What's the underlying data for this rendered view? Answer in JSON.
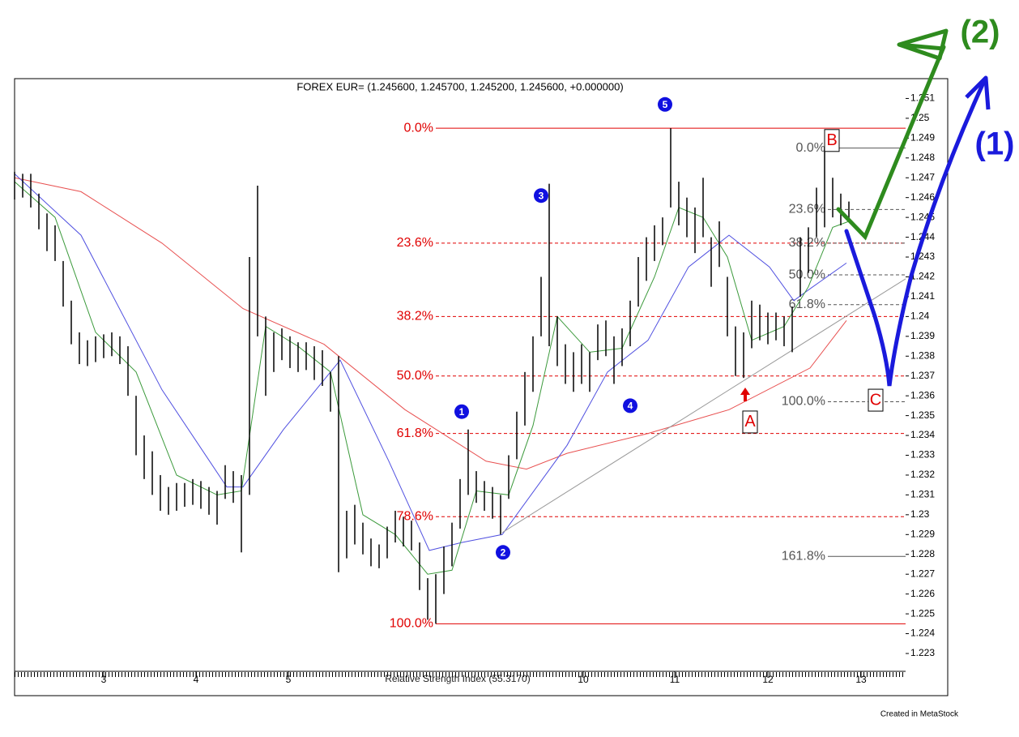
{
  "chart_data": {
    "type": "ohlc",
    "title": "FOREX EUR= (1.245600, 1.245700, 1.245200, 1.245600, +0.000000)",
    "indicator_label": "Relative Strength Index (55.3170)",
    "footer": "Created in MetaStock",
    "xlim": [
      0,
      110
    ],
    "ylim": [
      1.2221,
      1.252
    ],
    "xticks": [
      {
        "value": 11,
        "label": "3"
      },
      {
        "value": 22.4,
        "label": "4"
      },
      {
        "value": 33.8,
        "label": "5"
      },
      {
        "value": 70.2,
        "label": "10"
      },
      {
        "value": 81.5,
        "label": "11"
      },
      {
        "value": 93,
        "label": "12"
      },
      {
        "value": 104.5,
        "label": "13"
      }
    ],
    "yticks": [
      1.223,
      1.224,
      1.225,
      1.226,
      1.227,
      1.228,
      1.229,
      1.23,
      1.231,
      1.232,
      1.233,
      1.234,
      1.235,
      1.236,
      1.237,
      1.238,
      1.239,
      1.24,
      1.241,
      1.242,
      1.243,
      1.244,
      1.245,
      1.246,
      1.247,
      1.248,
      1.249,
      1.25,
      1.251
    ],
    "price": {
      "color": "#000000",
      "x": [
        0,
        1,
        2,
        3,
        4,
        5,
        6,
        7,
        8,
        9,
        10,
        11,
        12,
        13,
        14,
        15,
        16,
        17,
        18,
        19,
        20,
        21,
        22,
        23,
        24,
        25,
        26,
        27,
        28,
        29,
        30,
        31,
        32,
        33,
        34,
        35,
        36,
        37,
        38,
        39,
        40,
        41,
        42,
        43,
        44,
        45,
        46,
        47,
        48,
        49,
        50,
        51,
        52,
        53,
        54,
        55,
        56,
        57,
        58,
        59,
        60,
        61,
        62,
        63,
        64,
        65,
        66,
        67,
        68,
        69,
        70,
        71,
        72,
        73,
        74,
        75,
        76,
        77,
        78,
        79,
        80,
        81,
        82,
        83,
        84,
        85,
        86,
        87,
        88,
        89,
        90,
        91,
        92,
        93,
        94,
        95,
        96,
        97,
        98,
        99,
        100,
        101,
        102,
        103
      ],
      "high": [
        1.2473,
        1.2472,
        1.2472,
        1.2462,
        1.2452,
        1.2446,
        1.2428,
        1.2408,
        1.2392,
        1.2388,
        1.239,
        1.2391,
        1.2392,
        1.239,
        1.2385,
        1.236,
        1.234,
        1.2332,
        1.232,
        1.2314,
        1.2316,
        1.2316,
        1.2318,
        1.2317,
        1.2314,
        1.2312,
        1.2325,
        1.2322,
        1.232,
        1.243,
        1.2466,
        1.24,
        1.2392,
        1.2394,
        1.239,
        1.2387,
        1.2387,
        1.2385,
        1.2383,
        1.2372,
        1.238,
        1.2302,
        1.2305,
        1.2296,
        1.2288,
        1.2285,
        1.2294,
        1.2302,
        1.2299,
        1.2297,
        1.2286,
        1.2268,
        1.227,
        1.2284,
        1.2296,
        1.2318,
        1.2343,
        1.2322,
        1.2317,
        1.2314,
        1.231,
        1.233,
        1.2352,
        1.2372,
        1.239,
        1.242,
        1.2467,
        1.24,
        1.2386,
        1.2382,
        1.2386,
        1.2382,
        1.2396,
        1.2398,
        1.239,
        1.2394,
        1.2408,
        1.243,
        1.244,
        1.2446,
        1.245,
        1.2495,
        1.2468,
        1.246,
        1.2455,
        1.247,
        1.244,
        1.2448,
        1.242,
        1.2395,
        1.2392,
        1.2408,
        1.2406,
        1.2402,
        1.2402,
        1.24,
        1.2405,
        1.244,
        1.2445,
        1.2465,
        1.2485,
        1.247,
        1.2462,
        1.2458
      ],
      "low": [
        1.2459,
        1.246,
        1.2455,
        1.2444,
        1.2433,
        1.2428,
        1.2405,
        1.2386,
        1.2376,
        1.2375,
        1.2377,
        1.2379,
        1.238,
        1.2376,
        1.236,
        1.233,
        1.2318,
        1.231,
        1.2302,
        1.23,
        1.2302,
        1.2304,
        1.2305,
        1.2303,
        1.23,
        1.2295,
        1.2308,
        1.2306,
        1.2281,
        1.231,
        1.239,
        1.236,
        1.2372,
        1.2378,
        1.2374,
        1.2372,
        1.2373,
        1.2368,
        1.2365,
        1.2352,
        1.2271,
        1.2278,
        1.2285,
        1.228,
        1.2274,
        1.2273,
        1.2278,
        1.2286,
        1.2284,
        1.2282,
        1.2262,
        1.2247,
        1.2245,
        1.226,
        1.2274,
        1.2293,
        1.231,
        1.2306,
        1.2302,
        1.2298,
        1.229,
        1.2308,
        1.2328,
        1.2345,
        1.2362,
        1.239,
        1.2385,
        1.2375,
        1.2366,
        1.2362,
        1.2366,
        1.2362,
        1.2378,
        1.238,
        1.2366,
        1.2375,
        1.2385,
        1.2405,
        1.2418,
        1.2428,
        1.2436,
        1.2455,
        1.2446,
        1.244,
        1.2432,
        1.244,
        1.2415,
        1.2425,
        1.239,
        1.237,
        1.2369,
        1.2384,
        1.2388,
        1.2386,
        1.2388,
        1.2385,
        1.2382,
        1.241,
        1.2422,
        1.244,
        1.2445,
        1.245,
        1.2446,
        1.2448
      ]
    },
    "series": [
      {
        "color": "#e85050",
        "x": [
          0,
          8.2,
          18.2,
          28.2,
          38.2,
          48.2,
          58.2,
          63.2,
          68.2,
          78.2,
          88.2,
          98.2,
          102.7
        ],
        "values": [
          1.247,
          1.2463,
          1.2437,
          1.2404,
          1.2386,
          1.2353,
          1.2327,
          1.2323,
          1.2331,
          1.2341,
          1.2353,
          1.2374,
          1.2398
        ]
      },
      {
        "color": "#5050e0",
        "x": [
          0,
          8.2,
          18.2,
          26.2,
          28.2,
          33.2,
          40.2,
          46.2,
          51.2,
          55.2,
          60.2,
          68.2,
          73.2,
          78.2,
          83.2,
          88.2,
          93.2,
          96.2,
          98.2,
          102.7
        ],
        "values": [
          1.2472,
          1.2441,
          1.2363,
          1.2314,
          1.2314,
          1.2343,
          1.2378,
          1.2327,
          1.2282,
          1.2286,
          1.229,
          1.2335,
          1.2372,
          1.2388,
          1.2425,
          1.2441,
          1.2425,
          1.2408,
          1.2414,
          1.2427
        ]
      },
      {
        "color": "#3c9a3c",
        "x": [
          0,
          5,
          10,
          15,
          20,
          25,
          28,
          31,
          35,
          39,
          43,
          47,
          51,
          54,
          57,
          61,
          64,
          67,
          71,
          75,
          79,
          82,
          85,
          88,
          91,
          95,
          98,
          101,
          103
        ],
        "values": [
          1.2468,
          1.245,
          1.2392,
          1.2372,
          1.232,
          1.231,
          1.2312,
          1.2395,
          1.2385,
          1.2372,
          1.23,
          1.229,
          1.227,
          1.2272,
          1.2312,
          1.231,
          1.2345,
          1.24,
          1.2382,
          1.2384,
          1.242,
          1.2455,
          1.245,
          1.243,
          1.2388,
          1.2395,
          1.2415,
          1.2445,
          1.2448
        ]
      },
      {
        "color": "#999999",
        "x": [
          60.2,
          110
        ],
        "values": [
          1.2291,
          1.2419
        ]
      }
    ],
    "fib_retracement": {
      "color": "#e00000",
      "x_start": 52,
      "levels": [
        {
          "label": "0.0%",
          "value": 1.2495
        },
        {
          "label": "23.6%",
          "value": 1.2437
        },
        {
          "label": "38.2%",
          "value": 1.24
        },
        {
          "label": "50.0%",
          "value": 1.237
        },
        {
          "label": "61.8%",
          "value": 1.2341
        },
        {
          "label": "78.6%",
          "value": 1.2299
        },
        {
          "label": "100.0%",
          "value": 1.2245
        }
      ]
    },
    "fib_projection": {
      "color": "#555555",
      "x_start": 100.4,
      "levels": [
        {
          "label": "0.0%",
          "value": 1.2485
        },
        {
          "label": "23.6%",
          "value": 1.2454
        },
        {
          "label": "38.2%",
          "value": 1.2437
        },
        {
          "label": "50.0%",
          "value": 1.2421
        },
        {
          "label": "61.8%",
          "value": 1.2406
        },
        {
          "label": "100.0%",
          "value": 1.2357
        },
        {
          "label": "161.8%",
          "value": 1.2279
        }
      ]
    },
    "wave_labels": {
      "color": "#1010e0",
      "points": [
        {
          "label": "1",
          "x": 55.2,
          "value": 1.2352
        },
        {
          "label": "2",
          "x": 60.3,
          "value": 1.2281
        },
        {
          "label": "3",
          "x": 65,
          "value": 1.2461
        },
        {
          "label": "4",
          "x": 76,
          "value": 1.2355
        },
        {
          "label": "5",
          "x": 80.3,
          "value": 1.2507
        }
      ]
    },
    "correction_labels": {
      "color": "#e00000",
      "points": [
        {
          "label": "A",
          "x": 90.8,
          "value": 1.2347
        },
        {
          "label": "B",
          "x": 100.9,
          "value": 1.2489
        },
        {
          "label": "C",
          "x": 106.3,
          "value": 1.2358
        }
      ]
    },
    "handwritten_labels": [
      "(2)",
      "(1)"
    ]
  }
}
